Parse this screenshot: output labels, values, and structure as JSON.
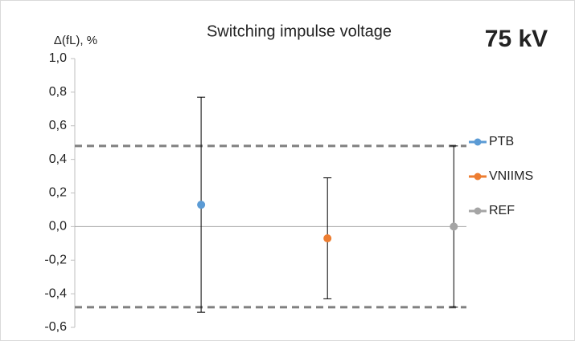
{
  "chart_data": {
    "type": "scatter",
    "title": "Switching impulse voltage",
    "annotation": "75 kV",
    "ylabel": "Δ(fL), %",
    "xlim": [
      0,
      3.1
    ],
    "ylim": [
      -0.6,
      1.0
    ],
    "yticks": [
      {
        "value": 1.0,
        "label": "1,0"
      },
      {
        "value": 0.8,
        "label": "0,8"
      },
      {
        "value": 0.6,
        "label": "0,6"
      },
      {
        "value": 0.4,
        "label": "0,4"
      },
      {
        "value": 0.2,
        "label": "0,2"
      },
      {
        "value": 0.0,
        "label": "0,0"
      },
      {
        "value": -0.2,
        "label": "-0,2"
      },
      {
        "value": -0.4,
        "label": "-0,4"
      },
      {
        "value": -0.6,
        "label": "-0,6"
      }
    ],
    "reference_lines": [
      0.48,
      -0.48
    ],
    "reference_color": "#808080",
    "series": [
      {
        "name": "PTB",
        "color": "#5b9bd5",
        "x": [
          1
        ],
        "values": [
          0.13
        ],
        "errors": [
          0.64
        ]
      },
      {
        "name": "VNIIMS",
        "color": "#ed7d31",
        "x": [
          2
        ],
        "values": [
          -0.07
        ],
        "errors": [
          0.36
        ]
      },
      {
        "name": "REF",
        "color": "#a5a5a5",
        "x": [
          3
        ],
        "values": [
          0.0
        ],
        "errors": [
          0.48
        ]
      }
    ],
    "legend": "right"
  }
}
